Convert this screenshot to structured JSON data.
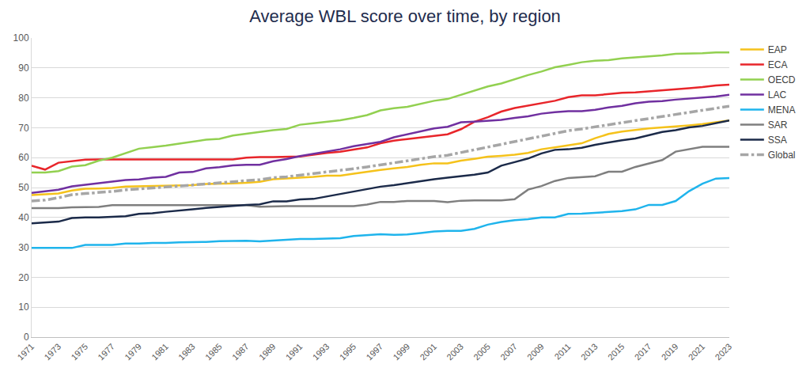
{
  "chart_data": {
    "type": "line",
    "title": "Average WBL score over time, by region",
    "x": [
      1971,
      1972,
      1973,
      1974,
      1975,
      1976,
      1977,
      1978,
      1979,
      1980,
      1981,
      1982,
      1983,
      1984,
      1985,
      1986,
      1987,
      1988,
      1989,
      1990,
      1991,
      1992,
      1993,
      1994,
      1995,
      1996,
      1997,
      1998,
      1999,
      2000,
      2001,
      2002,
      2003,
      2004,
      2005,
      2006,
      2007,
      2008,
      2009,
      2010,
      2011,
      2012,
      2013,
      2014,
      2015,
      2016,
      2017,
      2018,
      2019,
      2020,
      2021,
      2022,
      2023
    ],
    "xlim": [
      1971,
      2023
    ],
    "xticks": [
      1971,
      1973,
      1975,
      1977,
      1979,
      1981,
      1983,
      1985,
      1987,
      1989,
      1991,
      1993,
      1995,
      1997,
      1999,
      2001,
      2003,
      2005,
      2007,
      2009,
      2011,
      2013,
      2015,
      2017,
      2019,
      2021,
      2023
    ],
    "ylim": [
      0,
      100
    ],
    "yticks": [
      0,
      10,
      20,
      30,
      40,
      50,
      60,
      70,
      80,
      90,
      100
    ],
    "grid": true,
    "legend": "right",
    "series": [
      {
        "name": "EAP",
        "color": "#F5C21B",
        "values": [
          47.5,
          47.8,
          48,
          49,
          49.6,
          49.7,
          49.9,
          50.3,
          50.4,
          50.5,
          50.5,
          50.6,
          50.8,
          51.2,
          51.2,
          51.4,
          51.6,
          51.9,
          52.8,
          53,
          53.2,
          53.6,
          54,
          54,
          54.6,
          55.3,
          55.9,
          56.4,
          56.9,
          57.6,
          58.1,
          58.1,
          59,
          59.6,
          60.3,
          60.6,
          61,
          61.6,
          62.8,
          63.4,
          64.1,
          64.8,
          66.5,
          67.9,
          68.7,
          69.3,
          69.8,
          70.1,
          70.4,
          70.8,
          71.2,
          71.7,
          72.4
        ]
      },
      {
        "name": "ECA",
        "color": "#E8252A",
        "values": [
          57.3,
          56,
          58.3,
          58.8,
          59.3,
          59.4,
          59.4,
          59.4,
          59.4,
          59.4,
          59.2,
          59.4,
          59.4,
          59.4,
          59.4,
          59.4,
          60,
          60.2,
          60.2,
          60.2,
          60.4,
          61,
          61.6,
          62,
          62.6,
          63.4,
          64.8,
          65.7,
          66.2,
          66.8,
          67.4,
          67.8,
          69.5,
          72,
          73.5,
          75.4,
          76.6,
          77.4,
          78.3,
          79,
          80.2,
          80.8,
          80.8,
          81.3,
          81.7,
          81.8,
          82.1,
          82.4,
          82.8,
          83.2,
          83.6,
          84.1,
          84.4
        ]
      },
      {
        "name": "OECD",
        "color": "#92D050",
        "values": [
          55,
          55,
          55.5,
          57,
          57.5,
          59,
          60,
          61.5,
          63,
          63.5,
          64,
          64.7,
          65.3,
          66,
          66.3,
          67.4,
          68,
          68.6,
          69.2,
          69.6,
          71,
          71.5,
          72,
          72.5,
          73.3,
          74.2,
          75.8,
          76.5,
          77,
          78,
          79,
          79.6,
          81,
          82.3,
          83.8,
          84.8,
          86.3,
          87.6,
          88.8,
          90.2,
          91,
          91.9,
          92.4,
          92.6,
          93.2,
          93.5,
          93.9,
          94.2,
          94.7,
          94.8,
          94.9,
          95.2,
          95.2
        ]
      },
      {
        "name": "LAC",
        "color": "#7030A0",
        "values": [
          48.2,
          48.8,
          49.3,
          50.4,
          50.9,
          51.5,
          52,
          52.5,
          52.7,
          53.3,
          53.6,
          55,
          55.2,
          56.4,
          56.8,
          57.4,
          57.6,
          57.6,
          58.8,
          59.5,
          60.5,
          61.2,
          62,
          62.8,
          63.8,
          64.6,
          65.3,
          66.8,
          67.8,
          68.6,
          69.8,
          70.3,
          71.8,
          72,
          72.4,
          72.6,
          73.3,
          73.8,
          74.7,
          75.2,
          75.5,
          75.5,
          76,
          76.8,
          77.3,
          78.2,
          78.7,
          78.9,
          79.4,
          79.7,
          80.2,
          80.4,
          81
        ]
      },
      {
        "name": "MENA",
        "color": "#1FB4EC",
        "values": [
          29.8,
          29.8,
          29.8,
          29.8,
          30.8,
          30.8,
          30.8,
          31.3,
          31.3,
          31.5,
          31.5,
          31.7,
          31.7,
          31.8,
          32.1,
          32.2,
          32.2,
          32,
          32.3,
          32.4,
          32.8,
          32.8,
          33,
          33.1,
          33.8,
          34.1,
          34.4,
          34.2,
          34.3,
          34.8,
          35.3,
          35.5,
          35.5,
          36.2,
          37.6,
          38.5,
          39.1,
          39.4,
          40,
          40,
          41.2,
          41.3,
          41.5,
          41.7,
          42.1,
          42.7,
          44.2,
          44.2,
          45.5,
          48.8,
          51.3,
          53,
          53.2
        ]
      },
      {
        "name": "SAR",
        "color": "#7F7F7F",
        "values": [
          43.1,
          43.1,
          43.1,
          43.4,
          43.5,
          43.5,
          44.1,
          44.1,
          44.1,
          44.1,
          44.1,
          44.1,
          44.1,
          44.1,
          44.1,
          44.1,
          44.1,
          43.6,
          43.8,
          43.8,
          43.8,
          43.8,
          43.8,
          43.8,
          43.8,
          44.3,
          45.2,
          45.2,
          45.5,
          45.5,
          45.5,
          45.1,
          45.6,
          45.7,
          45.7,
          45.7,
          46.1,
          49.3,
          50.5,
          52.2,
          53.2,
          53.5,
          53.8,
          55.3,
          55.3,
          56.9,
          58.1,
          59.2,
          62,
          62.8,
          63.6,
          63.6,
          63.6
        ]
      },
      {
        "name": "SSA",
        "color": "#1B2A49",
        "values": [
          38,
          38.2,
          38.6,
          39.8,
          40,
          40,
          40.1,
          40.4,
          41.2,
          41.4,
          41.9,
          42.2,
          42.7,
          43.2,
          43.6,
          43.9,
          44.2,
          44.4,
          45.4,
          45.4,
          46,
          46.2,
          47,
          48,
          48.8,
          49.4,
          50.3,
          50.8,
          51.5,
          52.2,
          52.8,
          53.3,
          53.8,
          54.3,
          55,
          57.3,
          58.5,
          59.7,
          61.4,
          62.6,
          62.8,
          63.3,
          64.3,
          65.1,
          65.8,
          66.4,
          67.6,
          68.6,
          69.2,
          70.1,
          70.6,
          71.4,
          72.4
        ]
      },
      {
        "name": "Global",
        "color": "#A6A6A6",
        "line_style": "dashdot",
        "values": [
          45.5,
          45.8,
          46.6,
          47.6,
          48,
          48.3,
          48.7,
          49.2,
          49.6,
          49.9,
          50.2,
          50.5,
          50.9,
          51.2,
          51.5,
          52,
          52.3,
          52.6,
          53.3,
          53.6,
          54.1,
          54.6,
          55.1,
          55.6,
          56.3,
          56.9,
          57.6,
          58.3,
          58.9,
          59.6,
          60.3,
          60.8,
          61.7,
          62.6,
          63.6,
          64.6,
          65.5,
          66.3,
          67.3,
          68.2,
          69,
          69.6,
          70.3,
          71,
          71.7,
          72.3,
          73.1,
          73.8,
          74.5,
          75.3,
          76,
          76.6,
          77.2
        ]
      }
    ]
  }
}
